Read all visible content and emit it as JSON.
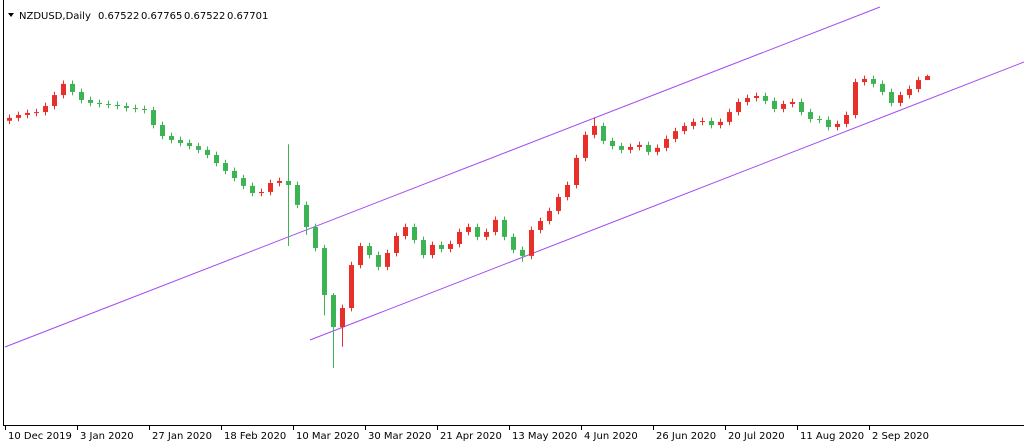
{
  "chart_data": {
    "type": "candlestick",
    "symbol": "NZDUSD,Daily",
    "up_color": "#e8302a",
    "down_color": "#3cb454",
    "ylim": [
      0.521,
      0.711
    ],
    "categories": [
      "10 Dec 2019",
      null,
      null,
      null,
      null,
      null,
      null,
      null,
      "3 Jan 2020",
      null,
      null,
      null,
      null,
      null,
      null,
      null,
      "27 Jan 2020",
      null,
      null,
      null,
      null,
      null,
      null,
      null,
      "18 Feb 2020",
      null,
      null,
      null,
      null,
      null,
      null,
      null,
      "10 Mar 2020",
      null,
      null,
      null,
      null,
      null,
      null,
      null,
      "30 Mar 2020",
      null,
      null,
      null,
      null,
      null,
      null,
      null,
      "21 Apr 2020",
      null,
      null,
      null,
      null,
      null,
      null,
      null,
      "13 May 2020",
      null,
      null,
      null,
      null,
      null,
      null,
      null,
      "4 Jun 2020",
      null,
      null,
      null,
      null,
      null,
      null,
      null,
      "26 Jun 2020",
      null,
      null,
      null,
      null,
      null,
      null,
      null,
      "20 Jul 2020",
      null,
      null,
      null,
      null,
      null,
      null,
      null,
      "11 Aug 2020",
      null,
      null,
      null,
      null,
      null,
      null,
      null,
      "2 Sep 2020",
      null,
      null,
      null,
      null,
      null,
      null
    ],
    "open": [
      0.657,
      0.6583,
      0.6596,
      0.6605,
      0.6609,
      0.6636,
      0.6685,
      0.6735,
      0.6699,
      0.6663,
      0.665,
      0.6645,
      0.6641,
      0.6636,
      0.6627,
      0.6623,
      0.6618,
      0.6551,
      0.6502,
      0.6484,
      0.6471,
      0.6457,
      0.644,
      0.6417,
      0.6381,
      0.6346,
      0.6314,
      0.6279,
      0.6247,
      0.6252,
      0.6292,
      0.6301,
      0.6283,
      0.6194,
      0.6095,
      0.6001,
      0.5791,
      0.5648,
      0.5733,
      0.5925,
      0.601,
      0.597,
      0.5917,
      0.5979,
      0.6055,
      0.6095,
      0.6037,
      0.597,
      0.6015,
      0.5997,
      0.6019,
      0.6073,
      0.6095,
      0.6051,
      0.6073,
      0.6127,
      0.6051,
      0.5993,
      0.5966,
      0.6082,
      0.6122,
      0.6167,
      0.6229,
      0.6283,
      0.6404,
      0.6507,
      0.6547,
      0.648,
      0.6457,
      0.644,
      0.6453,
      0.6462,
      0.6431,
      0.6449,
      0.6489,
      0.6524,
      0.6547,
      0.6565,
      0.6569,
      0.6551,
      0.6565,
      0.6609,
      0.6654,
      0.6672,
      0.6681,
      0.6659,
      0.6623,
      0.6645,
      0.6654,
      0.6609,
      0.6578,
      0.6574,
      0.6542,
      0.6556,
      0.6596,
      0.6743,
      0.6757,
      0.6735,
      0.6699,
      0.665,
      0.6685,
      0.6712,
      0.67522
    ],
    "high": [
      0.6598,
      0.6611,
      0.662,
      0.6624,
      0.6651,
      0.67,
      0.675,
      0.675,
      0.6714,
      0.6678,
      0.6665,
      0.666,
      0.6656,
      0.6651,
      0.6642,
      0.6638,
      0.6633,
      0.6566,
      0.6517,
      0.6499,
      0.6486,
      0.6472,
      0.6455,
      0.6432,
      0.6396,
      0.6361,
      0.6329,
      0.6294,
      0.6267,
      0.6307,
      0.6316,
      0.6465,
      0.6298,
      0.6209,
      0.611,
      0.6016,
      0.58,
      0.5748,
      0.594,
      0.6025,
      0.6025,
      0.5985,
      0.5994,
      0.607,
      0.611,
      0.611,
      0.6052,
      0.603,
      0.603,
      0.6034,
      0.6088,
      0.611,
      0.611,
      0.6088,
      0.6142,
      0.6142,
      0.6066,
      0.6008,
      0.6097,
      0.6137,
      0.6182,
      0.6244,
      0.6298,
      0.6419,
      0.6522,
      0.6585,
      0.6562,
      0.6495,
      0.6472,
      0.6468,
      0.6477,
      0.6477,
      0.6464,
      0.6504,
      0.6539,
      0.6562,
      0.658,
      0.6584,
      0.6584,
      0.658,
      0.6624,
      0.6669,
      0.6687,
      0.6696,
      0.6696,
      0.6674,
      0.666,
      0.6669,
      0.6669,
      0.6624,
      0.6593,
      0.6589,
      0.6571,
      0.6611,
      0.6758,
      0.6772,
      0.6772,
      0.675,
      0.6714,
      0.67,
      0.6727,
      0.6767,
      0.67765
    ],
    "low": [
      0.6555,
      0.6568,
      0.6581,
      0.659,
      0.6594,
      0.6621,
      0.667,
      0.6684,
      0.6648,
      0.6635,
      0.663,
      0.6626,
      0.6621,
      0.6612,
      0.6608,
      0.6603,
      0.6536,
      0.6487,
      0.6469,
      0.6456,
      0.6442,
      0.6425,
      0.6402,
      0.6366,
      0.6331,
      0.6299,
      0.6264,
      0.6232,
      0.6232,
      0.6237,
      0.6277,
      0.601,
      0.6179,
      0.606,
      0.5986,
      0.57,
      0.5465,
      0.556,
      0.5718,
      0.591,
      0.5955,
      0.5902,
      0.5902,
      0.5964,
      0.604,
      0.6022,
      0.5955,
      0.5955,
      0.5982,
      0.5982,
      0.6004,
      0.6058,
      0.6036,
      0.6036,
      0.6058,
      0.6036,
      0.5978,
      0.594,
      0.5951,
      0.6067,
      0.6107,
      0.6152,
      0.6214,
      0.6268,
      0.6389,
      0.6492,
      0.6465,
      0.6442,
      0.6425,
      0.6425,
      0.6438,
      0.6416,
      0.6416,
      0.6434,
      0.6474,
      0.6509,
      0.6532,
      0.655,
      0.6536,
      0.6536,
      0.655,
      0.6594,
      0.6639,
      0.6657,
      0.6644,
      0.6608,
      0.6608,
      0.663,
      0.6594,
      0.6563,
      0.6559,
      0.6527,
      0.6527,
      0.6541,
      0.6581,
      0.6728,
      0.672,
      0.6684,
      0.6635,
      0.6635,
      0.667,
      0.6697,
      0.67522
    ],
    "close": [
      0.6583,
      0.6596,
      0.6605,
      0.6609,
      0.6636,
      0.6685,
      0.6735,
      0.6699,
      0.6663,
      0.665,
      0.6645,
      0.6641,
      0.6636,
      0.6627,
      0.6623,
      0.6618,
      0.6551,
      0.6502,
      0.6484,
      0.6471,
      0.6457,
      0.644,
      0.6417,
      0.6381,
      0.6346,
      0.6314,
      0.6279,
      0.6247,
      0.6252,
      0.6292,
      0.6301,
      0.6283,
      0.6194,
      0.6095,
      0.6001,
      0.5791,
      0.5648,
      0.5733,
      0.5925,
      0.601,
      0.597,
      0.5917,
      0.5979,
      0.6055,
      0.6095,
      0.6037,
      0.597,
      0.6015,
      0.5997,
      0.6019,
      0.6073,
      0.6095,
      0.6051,
      0.6073,
      0.6127,
      0.6051,
      0.5993,
      0.5966,
      0.6082,
      0.6122,
      0.6167,
      0.6229,
      0.6283,
      0.6404,
      0.6507,
      0.6547,
      0.648,
      0.6457,
      0.644,
      0.6453,
      0.6462,
      0.6431,
      0.6449,
      0.6489,
      0.6524,
      0.6547,
      0.6565,
      0.6569,
      0.6551,
      0.6565,
      0.6609,
      0.6654,
      0.6672,
      0.6681,
      0.6659,
      0.6623,
      0.6645,
      0.6654,
      0.6609,
      0.6578,
      0.6574,
      0.6542,
      0.6556,
      0.6596,
      0.6743,
      0.6757,
      0.6735,
      0.6699,
      0.665,
      0.6685,
      0.6712,
      0.6752,
      0.67701
    ]
  }
}
